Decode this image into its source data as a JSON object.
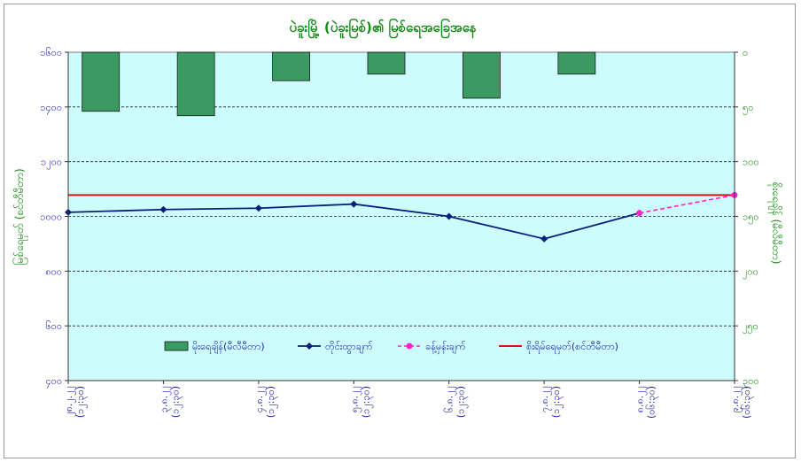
{
  "chart_data": {
    "type": "bar+line",
    "title": "ပဲခူးမြို့ (ပဲခူးမြစ်)၏ မြစ်ရေအခြေအနေ",
    "ylabel_left": "မြစ်ရေမှတ် (စင်တီမီတာ)",
    "ylabel_right": "စိုးရေချိန် (မီလီမီတာ)",
    "left_axis": {
      "min": 400,
      "max": 1600,
      "step": 200,
      "tick_labels": [
        "၄၀၀",
        "၆၀၀",
        "၈၀၀",
        "၁၀၀၀",
        "၁၂၀၀",
        "၁၄၀၀",
        "၁၆၀၀"
      ]
    },
    "right_axis": {
      "min": 0,
      "max": 300,
      "step": 50,
      "reversed": true,
      "tick_labels": [
        "၀",
        "၅၀",
        "၁၀၀",
        "၁၅၀",
        "၂၀၀",
        "၂၅၀",
        "၃၀၀"
      ]
    },
    "categories": [
      "၂၈.၂.၂၂ (၁၂:၃၀)",
      "၃.၈.၂၂ (၁၂:၃၀)",
      "၄.၈.၂၂ (၁၂:၃၀)",
      "၅.၈.၂၂ (၁၂:၃၀)",
      "၆.၈.၂၂ (၁၂:၃၀)",
      "၇.၈.၂၂ (၁၂:၃၀)",
      "၈.၈.၂၂ (၀၆:၃၀)",
      "၉.၈.၂၂ (၀၆:၃၀)"
    ],
    "series": [
      {
        "name": "မိုးရေချိန်(မီလီမီတာ)",
        "type": "bar",
        "axis": "right",
        "color": "#3a9a62",
        "values": [
          54,
          58,
          26,
          20,
          42,
          20,
          null,
          null
        ]
      },
      {
        "name": "တိုင်းထွာချက်",
        "type": "line",
        "axis": "left",
        "color": "#0a1f7a",
        "values": [
          1015,
          1025,
          1030,
          1045,
          1000,
          918,
          1012,
          null
        ]
      },
      {
        "name": "ခန့်မှန်းချက်",
        "type": "line-dashed",
        "axis": "left",
        "color": "#ff22cc",
        "values": [
          null,
          null,
          null,
          null,
          null,
          null,
          1012,
          1078
        ]
      },
      {
        "name": "စိုးရိမ်ရေမှတ်(စင်တီမီတာ)",
        "type": "hline",
        "axis": "left",
        "color": "#dd1111",
        "value": 1078
      }
    ],
    "grid": true,
    "legend_position": "bottom-center"
  }
}
